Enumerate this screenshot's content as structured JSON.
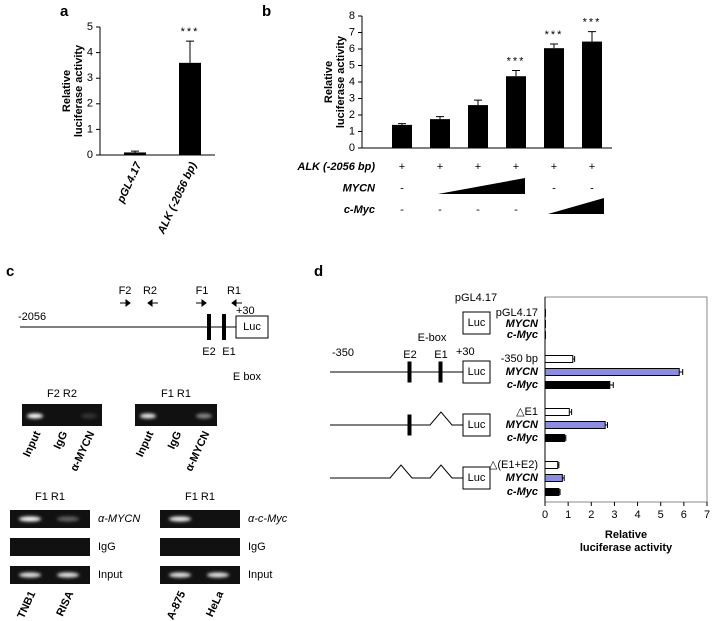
{
  "panel_labels": [
    "a",
    "b",
    "c",
    "d"
  ],
  "chart_data": [
    {
      "type": "bar",
      "ylabel": [
        "Relative",
        "luciferase activity"
      ],
      "categories": [
        "pGL4.17",
        "ALK (-2056 bp)"
      ],
      "values": [
        0.1,
        3.6
      ],
      "errors": [
        0.05,
        0.85
      ],
      "annotations": [
        null,
        "***"
      ],
      "color": "#000000",
      "ylim": [
        0,
        5
      ],
      "yticks": [
        0,
        1,
        2,
        3,
        4,
        5
      ]
    },
    {
      "type": "bar",
      "ylabel": [
        "Relative",
        "luciferase activity"
      ],
      "values": [
        1.4,
        1.75,
        2.6,
        4.35,
        6.05,
        6.45
      ],
      "errors": [
        0.08,
        0.15,
        0.3,
        0.35,
        0.25,
        0.6
      ],
      "annotations": [
        null,
        null,
        null,
        "***",
        "***",
        "***"
      ],
      "color": "#000000",
      "ylim": [
        0,
        8
      ],
      "yticks": [
        0,
        1,
        2,
        3,
        4,
        5,
        6,
        7,
        8
      ],
      "conditions": [
        {
          "label": "ALK (-2056 bp)",
          "marks": [
            "+",
            "+",
            "+",
            "+",
            "+",
            "+"
          ]
        },
        {
          "label": "MYCN",
          "marks": [
            "-",
            null,
            null,
            null,
            "-",
            "-"
          ]
        },
        {
          "label": "c-Myc",
          "marks": [
            "-",
            "-",
            "-",
            "-",
            null,
            null
          ]
        }
      ]
    },
    {
      "type": "hbar",
      "xlabel": [
        "Relative",
        "luciferase activity"
      ],
      "categories": [
        "pGL4.17",
        "MYCN",
        "c-Myc",
        "-350 bp",
        "MYCN",
        "c-Myc",
        "△E1",
        "MYCN",
        "c-Myc",
        "△(E1+E2)",
        "MYCN",
        "c-Myc"
      ],
      "values": [
        0.02,
        0.02,
        0.02,
        1.2,
        5.8,
        2.8,
        1.05,
        2.6,
        0.85,
        0.55,
        0.75,
        0.6
      ],
      "errors": [
        null,
        null,
        null,
        0.08,
        0.15,
        0.15,
        0.1,
        0.1,
        0.05,
        0.05,
        0.08,
        0.05
      ],
      "colors": [
        "#ffffff",
        "#ffffff",
        "#ffffff",
        "#ffffff",
        "#8c8ce0",
        "#000000",
        "#ffffff",
        "#8c8ce0",
        "#000000",
        "#ffffff",
        "#8c8ce0",
        "#000000"
      ],
      "xlim": [
        0,
        7
      ],
      "xticks": [
        0,
        1,
        2,
        3,
        4,
        5,
        6,
        7
      ]
    }
  ],
  "panel_c": {
    "primers": [
      "F2",
      "R2",
      "F1",
      "R1"
    ],
    "start": "-2056",
    "end": "+30",
    "luc": "Luc",
    "elements": [
      "E2",
      "E1"
    ],
    "ebox": "E box",
    "gels_top": [
      {
        "header": "F2 R2",
        "lanes": [
          "Input",
          "IgG",
          "α-MYCN"
        ]
      },
      {
        "header": "F1 R1",
        "lanes": [
          "Input",
          "IgG",
          "α-MYCN"
        ]
      }
    ],
    "gels_bottom": [
      {
        "header": "F1 R1",
        "rows": [
          "α-MYCN",
          "IgG",
          "Input"
        ],
        "lanes": [
          "TNB1",
          "RISA"
        ]
      },
      {
        "header": "F1 R1",
        "rows": [
          "α-c-Myc",
          "IgG",
          "Input"
        ],
        "lanes": [
          "A-875",
          "HeLa"
        ]
      }
    ]
  },
  "panel_d_diagram": {
    "vector": "pGL4.17",
    "luc": "Luc",
    "start": "-350",
    "elements": [
      "E2",
      "E1"
    ],
    "end": "+30",
    "ebox": "E-box"
  }
}
